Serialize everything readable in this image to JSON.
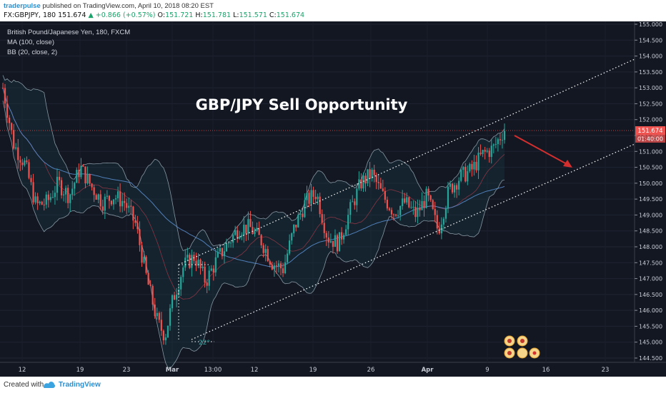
{
  "header": {
    "publisher": "traderpulse",
    "published_text": "published on TradingView.com, April 10, 2018 08:20 EST",
    "symbol": "FX:GBPJPY, 180",
    "last": "151.674",
    "change": "+0.866 (+0.57%)",
    "o_label": "O:",
    "o_val": "151.721",
    "h_label": "H:",
    "h_val": "151.781",
    "l_label": "L:",
    "l_val": "151.571",
    "c_label": "C:",
    "c_val": "151.674"
  },
  "legend": {
    "instrument": "British Pound/Japanese Yen, 180, FXCM",
    "ma": "MA (100, close)",
    "bb": "BB (20, close, 2)"
  },
  "footer": {
    "created": "Created with",
    "brand": "TradingView"
  },
  "colors": {
    "background": "#131722",
    "up": "#26a69a",
    "down": "#ef5350",
    "channel": "#ffffff",
    "arrow": "#d32f2f",
    "price_label": "#ef5350",
    "bb_band": "#b7cbd7",
    "ma": "#5b8fd1"
  },
  "chart_data": {
    "type": "candlestick",
    "title": "GBP/JPY Sell Opportunity",
    "ylim": [
      144.5,
      155.0
    ],
    "y_ticks": [
      "155.000",
      "154.500",
      "154.000",
      "153.500",
      "153.000",
      "152.500",
      "152.000",
      "151.500",
      "151.000",
      "150.500",
      "150.000",
      "149.500",
      "149.000",
      "148.500",
      "148.000",
      "147.500",
      "147.000",
      "146.500",
      "146.000",
      "145.500",
      "145.000",
      "144.500"
    ],
    "x_ticks": [
      "12",
      "19",
      "23",
      "Mar",
      "13:00",
      "12",
      "19",
      "26",
      "Apr",
      "9",
      "16",
      "23"
    ],
    "current_price": "151.674",
    "countdown": "01:40:00",
    "annotation_angle": "22°",
    "price_path": [
      {
        "x": 0,
        "y": 153.0
      },
      {
        "x": 3,
        "y": 151.2
      },
      {
        "x": 6,
        "y": 150.6
      },
      {
        "x": 9,
        "y": 149.3
      },
      {
        "x": 12,
        "y": 149.4
      },
      {
        "x": 15,
        "y": 150.0
      },
      {
        "x": 18,
        "y": 149.6
      },
      {
        "x": 21,
        "y": 150.5
      },
      {
        "x": 24,
        "y": 149.9
      },
      {
        "x": 27,
        "y": 149.4
      },
      {
        "x": 30,
        "y": 149.6
      },
      {
        "x": 33,
        "y": 149.4
      },
      {
        "x": 36,
        "y": 148.7
      },
      {
        "x": 39,
        "y": 147.0
      },
      {
        "x": 42,
        "y": 145.6
      },
      {
        "x": 44,
        "y": 145.2
      },
      {
        "x": 46,
        "y": 146.3
      },
      {
        "x": 49,
        "y": 147.4
      },
      {
        "x": 52,
        "y": 147.7
      },
      {
        "x": 55,
        "y": 146.9
      },
      {
        "x": 58,
        "y": 147.6
      },
      {
        "x": 61,
        "y": 148.1
      },
      {
        "x": 64,
        "y": 148.6
      },
      {
        "x": 67,
        "y": 148.6
      },
      {
        "x": 70,
        "y": 148.2
      },
      {
        "x": 73,
        "y": 147.5
      },
      {
        "x": 76,
        "y": 147.3
      },
      {
        "x": 79,
        "y": 148.6
      },
      {
        "x": 82,
        "y": 149.4
      },
      {
        "x": 85,
        "y": 149.7
      },
      {
        "x": 88,
        "y": 148.3
      },
      {
        "x": 91,
        "y": 148.1
      },
      {
        "x": 94,
        "y": 149.1
      },
      {
        "x": 97,
        "y": 150.0
      },
      {
        "x": 100,
        "y": 150.3
      },
      {
        "x": 103,
        "y": 149.6
      },
      {
        "x": 106,
        "y": 149.1
      },
      {
        "x": 109,
        "y": 149.4
      },
      {
        "x": 112,
        "y": 149.0
      },
      {
        "x": 115,
        "y": 149.6
      },
      {
        "x": 118,
        "y": 148.5
      },
      {
        "x": 121,
        "y": 149.8
      },
      {
        "x": 124,
        "y": 150.2
      },
      {
        "x": 127,
        "y": 150.4
      },
      {
        "x": 130,
        "y": 150.9
      },
      {
        "x": 133,
        "y": 151.1
      },
      {
        "x": 136,
        "y": 151.7
      }
    ]
  }
}
